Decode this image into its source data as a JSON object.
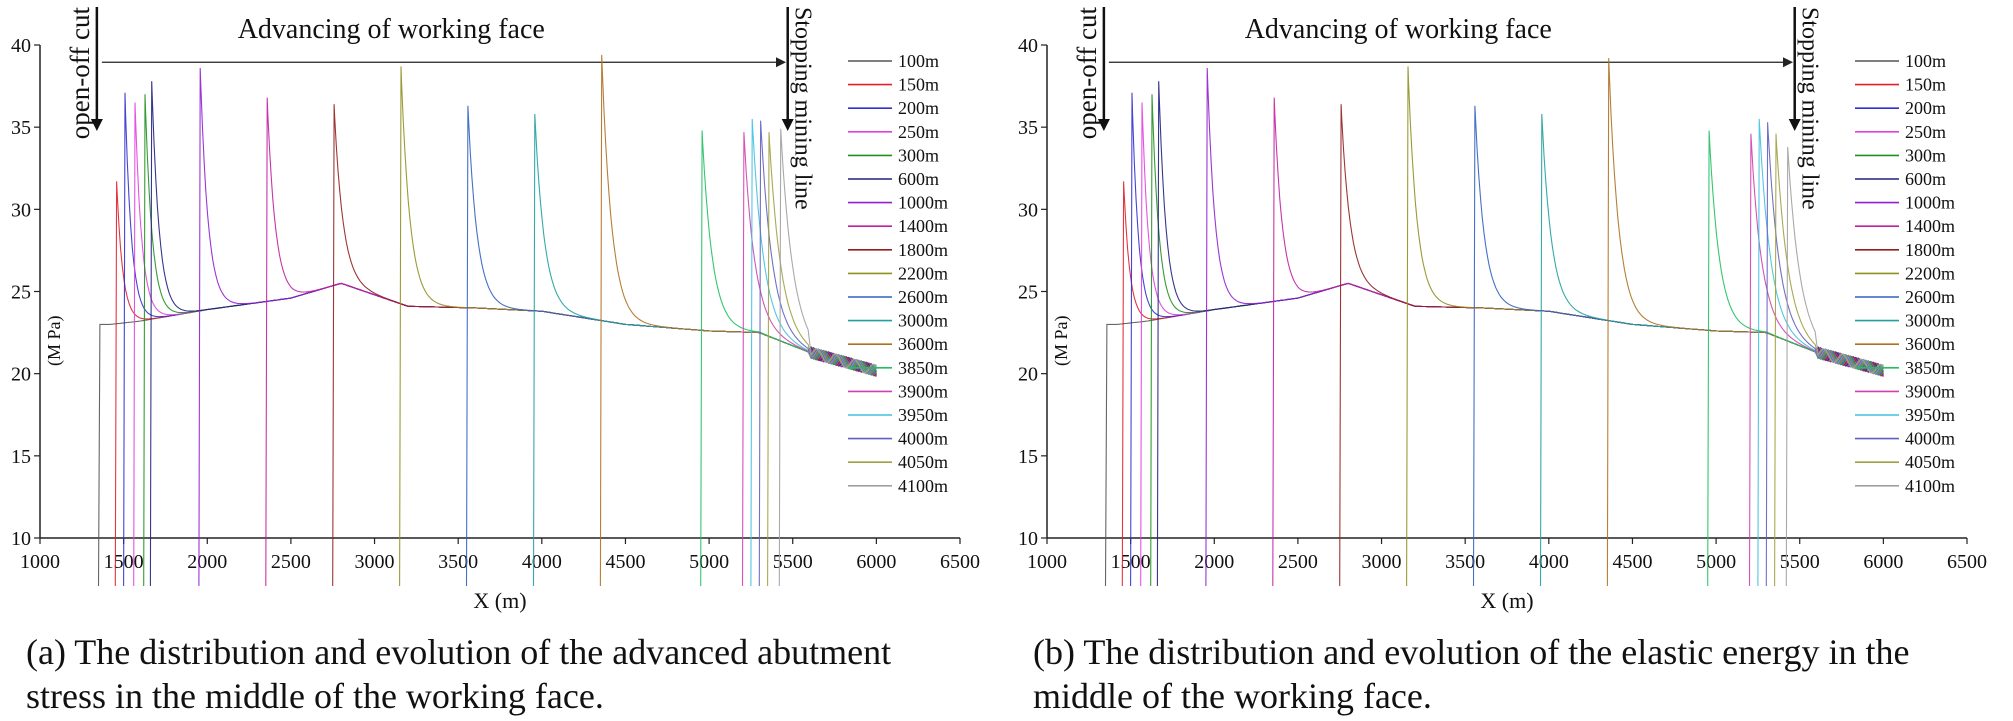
{
  "charts": [
    {
      "id": "a",
      "caption_line1": "(a) The distribution and evolution of the advanced abutment",
      "caption_line2": "stress in the middle of the working face.",
      "title": "Advancing of working face",
      "open_off_label": "open-off cut",
      "stopping_label": "Stopping mining line",
      "xlabel": "X (m)",
      "ylabel": "(M Pa)"
    },
    {
      "id": "b",
      "caption_line1": "(b) The distribution and evolution of the elastic energy in the",
      "caption_line2": "middle of the working face.",
      "title": "Advancing of working face",
      "open_off_label": "open-off cut",
      "stopping_label": "Stopping mining line",
      "xlabel": "X (m)",
      "ylabel": "(M Pa)"
    }
  ],
  "chart_data": [
    {
      "type": "line",
      "title": "Advancing of working face",
      "xlabel": "X (m)",
      "ylabel": "(M Pa)",
      "xlim": [
        1000,
        6500
      ],
      "ylim": [
        10,
        40
      ],
      "xticks": [
        1000,
        1500,
        2000,
        2500,
        3000,
        3500,
        4000,
        4500,
        5000,
        5500,
        6000,
        6500
      ],
      "yticks": [
        10,
        15,
        20,
        25,
        30,
        35,
        40
      ],
      "legend_position": "right",
      "annotations": [
        "open-off cut",
        "Stopping mining line",
        "Advancing of working face"
      ],
      "series": [
        {
          "name": "100m",
          "color": "#555555",
          "face_x": 1350,
          "peak": 23.0
        },
        {
          "name": "150m",
          "color": "#e0202a",
          "face_x": 1450,
          "peak": 31.7
        },
        {
          "name": "200m",
          "color": "#3030d0",
          "face_x": 1500,
          "peak": 37.1
        },
        {
          "name": "250m",
          "color": "#e040e0",
          "face_x": 1560,
          "peak": 36.5
        },
        {
          "name": "300m",
          "color": "#209020",
          "face_x": 1620,
          "peak": 37.0
        },
        {
          "name": "600m",
          "color": "#202080",
          "face_x": 1660,
          "peak": 37.8
        },
        {
          "name": "1000m",
          "color": "#9020d0",
          "face_x": 1950,
          "peak": 38.6
        },
        {
          "name": "1400m",
          "color": "#c020a0",
          "face_x": 2350,
          "peak": 36.8
        },
        {
          "name": "1800m",
          "color": "#902020",
          "face_x": 2750,
          "peak": 36.4
        },
        {
          "name": "2200m",
          "color": "#909020",
          "face_x": 3150,
          "peak": 38.7
        },
        {
          "name": "2600m",
          "color": "#3060c0",
          "face_x": 3550,
          "peak": 36.3
        },
        {
          "name": "3000m",
          "color": "#20a0a0",
          "face_x": 3950,
          "peak": 35.8
        },
        {
          "name": "3600m",
          "color": "#b07020",
          "face_x": 4350,
          "peak": 39.4
        },
        {
          "name": "3850m",
          "color": "#20c060",
          "face_x": 4950,
          "peak": 34.8
        },
        {
          "name": "3900m",
          "color": "#d040b0",
          "face_x": 5200,
          "peak": 34.7
        },
        {
          "name": "3950m",
          "color": "#40c0e0",
          "face_x": 5250,
          "peak": 35.5
        },
        {
          "name": "4000m",
          "color": "#6060c0",
          "face_x": 5300,
          "peak": 35.4
        },
        {
          "name": "4050m",
          "color": "#a0a040",
          "face_x": 5350,
          "peak": 34.7
        },
        {
          "name": "4100m",
          "color": "#a0a0a0",
          "face_x": 5420,
          "peak": 34.9
        }
      ]
    },
    {
      "type": "line",
      "title": "Advancing of working face",
      "xlabel": "X (m)",
      "ylabel": "(M Pa)",
      "xlim": [
        1000,
        6500
      ],
      "ylim": [
        10,
        40
      ],
      "xticks": [
        1000,
        1500,
        2000,
        2500,
        3000,
        3500,
        4000,
        4500,
        5000,
        5500,
        6000,
        6500
      ],
      "yticks": [
        10,
        15,
        20,
        25,
        30,
        35,
        40
      ],
      "legend_position": "right",
      "annotations": [
        "open-off cut",
        "Stopping mining line",
        "Advancing of working face"
      ],
      "series": [
        {
          "name": "100m",
          "color": "#555555",
          "face_x": 1350,
          "peak": 23.0
        },
        {
          "name": "150m",
          "color": "#e0202a",
          "face_x": 1450,
          "peak": 31.7
        },
        {
          "name": "200m",
          "color": "#3030d0",
          "face_x": 1500,
          "peak": 37.1
        },
        {
          "name": "250m",
          "color": "#e040e0",
          "face_x": 1560,
          "peak": 36.5
        },
        {
          "name": "300m",
          "color": "#209020",
          "face_x": 1620,
          "peak": 37.0
        },
        {
          "name": "600m",
          "color": "#202080",
          "face_x": 1660,
          "peak": 37.8
        },
        {
          "name": "1000m",
          "color": "#9020d0",
          "face_x": 1950,
          "peak": 38.6
        },
        {
          "name": "1400m",
          "color": "#c020a0",
          "face_x": 2350,
          "peak": 36.8
        },
        {
          "name": "1800m",
          "color": "#902020",
          "face_x": 2750,
          "peak": 36.4
        },
        {
          "name": "2200m",
          "color": "#909020",
          "face_x": 3150,
          "peak": 38.7
        },
        {
          "name": "2600m",
          "color": "#3060c0",
          "face_x": 3550,
          "peak": 36.3
        },
        {
          "name": "3000m",
          "color": "#20a0a0",
          "face_x": 3950,
          "peak": 35.8
        },
        {
          "name": "3600m",
          "color": "#b07020",
          "face_x": 4350,
          "peak": 39.2
        },
        {
          "name": "3850m",
          "color": "#20c060",
          "face_x": 4950,
          "peak": 34.8
        },
        {
          "name": "3900m",
          "color": "#d040b0",
          "face_x": 5200,
          "peak": 34.6
        },
        {
          "name": "3950m",
          "color": "#40c0e0",
          "face_x": 5250,
          "peak": 35.5
        },
        {
          "name": "4000m",
          "color": "#6060c0",
          "face_x": 5300,
          "peak": 35.3
        },
        {
          "name": "4050m",
          "color": "#a0a040",
          "face_x": 5350,
          "peak": 34.6
        },
        {
          "name": "4100m",
          "color": "#a0a0a0",
          "face_x": 5420,
          "peak": 33.8
        }
      ]
    }
  ]
}
